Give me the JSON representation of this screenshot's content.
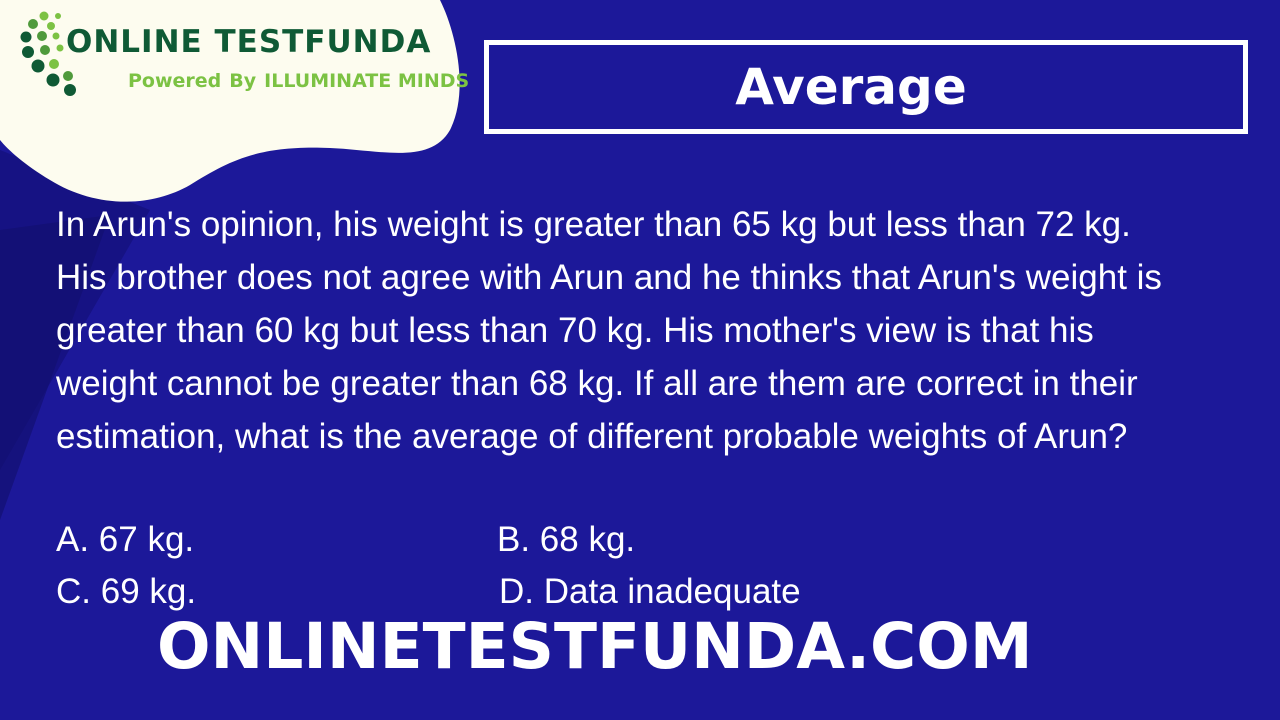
{
  "brand": {
    "name": "ONLINE TESTFUNDA",
    "tagline_prefix": "Powered",
    "tagline_by": "By",
    "tagline_org": "ILLUMINATE MINDS"
  },
  "title": "Average",
  "question": "In Arun's opinion, his weight is greater than 65 kg but less than 72 kg. His brother does not agree with Arun and he thinks that Arun's weight is greater than 60 kg but less than 70 kg. His mother's view is that his weight cannot be greater than 68 kg. If all are them are correct in their estimation, what is the average of different probable weights of Arun?",
  "options": {
    "a": "A. 67 kg.",
    "b": "B. 68 kg.",
    "c": "C. 69 kg.",
    "d": "D. Data inadequate"
  },
  "footer": "ONLINETESTFUNDA.COM",
  "colors": {
    "background": "#1c1899",
    "brand_dark_green": "#0f5a35",
    "brand_light_green": "#7cc243",
    "text": "#ffffff"
  }
}
